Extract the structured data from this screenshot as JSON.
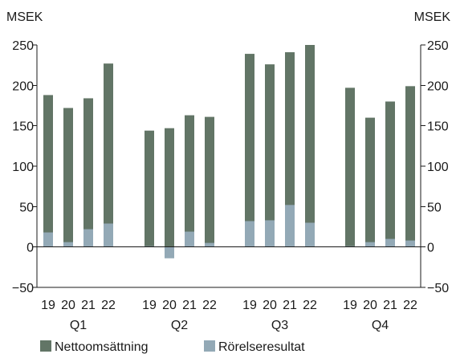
{
  "chart_data": {
    "type": "bar",
    "title": "",
    "unit_left": "MSEK",
    "unit_right": "MSEK",
    "ylim": [
      -50,
      250
    ],
    "yticks": [
      -50,
      0,
      50,
      100,
      150,
      200,
      250
    ],
    "grid": false,
    "legend_position": "bottom-left",
    "groups": [
      {
        "label": "Q1",
        "years": [
          "19",
          "20",
          "21",
          "22"
        ]
      },
      {
        "label": "Q2",
        "years": [
          "19",
          "20",
          "21",
          "22"
        ]
      },
      {
        "label": "Q3",
        "years": [
          "19",
          "20",
          "21",
          "22"
        ]
      },
      {
        "label": "Q4",
        "years": [
          "19",
          "20",
          "21",
          "22"
        ]
      }
    ],
    "series": [
      {
        "name": "Nettoomsättning",
        "color": "#627566",
        "values": [
          [
            188,
            172,
            184,
            227
          ],
          [
            144,
            147,
            163,
            161
          ],
          [
            239,
            226,
            241,
            250
          ],
          [
            197,
            160,
            180,
            199
          ]
        ]
      },
      {
        "name": "Rörelseresultat",
        "color": "#93a9b6",
        "values": [
          [
            18,
            6,
            22,
            29
          ],
          [
            1,
            -14,
            19,
            5
          ],
          [
            32,
            33,
            52,
            30
          ],
          [
            1,
            6,
            10,
            8
          ]
        ]
      }
    ]
  }
}
